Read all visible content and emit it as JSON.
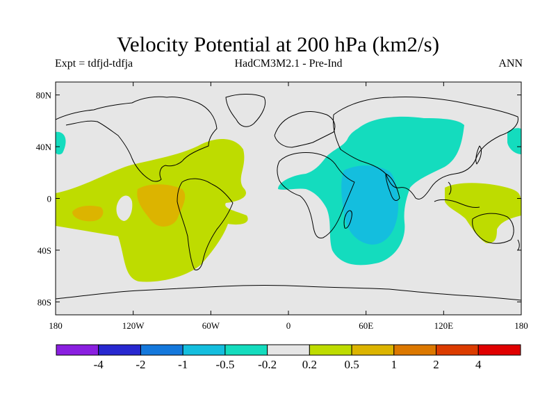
{
  "title": "Velocity Potential at 200 hPa (km2/s)",
  "subtitle_left": "Expt = tdfjd-tdfja",
  "subtitle_center": "HadCM3M2.1 - Pre-Ind",
  "subtitle_right": "ANN",
  "map": {
    "lon_ticks": [
      "180",
      "120W",
      "60W",
      "0",
      "60E",
      "120E",
      "180"
    ],
    "lat_ticks": [
      "80N",
      "40N",
      "0",
      "40S",
      "80S"
    ]
  },
  "colorbar": {
    "colors": [
      "#8a1fe0",
      "#2828d0",
      "#1478dc",
      "#14bede",
      "#14dcbe",
      "#e6e6e6",
      "#bedc00",
      "#dcb400",
      "#dc7800",
      "#dc3c00",
      "#e00000"
    ],
    "labels": [
      "-4",
      "-2",
      "-1",
      "-0.5",
      "-0.2",
      "0.2",
      "0.5",
      "1",
      "2",
      "4"
    ]
  },
  "colors": {
    "background": "#e6e6e6",
    "cyan_green": "#14dcbe",
    "light_blue": "#14bede",
    "yellow_green": "#bedc00",
    "orange": "#dcb400",
    "dark_orange": "#dc7800"
  }
}
